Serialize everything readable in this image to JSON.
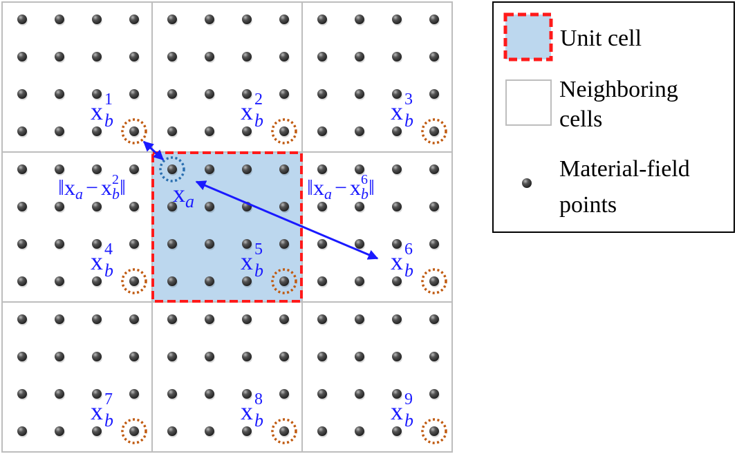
{
  "colors": {
    "unit_cell_fill": "#bcd7ee",
    "unit_cell_border": "#ff1a1a",
    "neighbor_border": "#bdbdbd",
    "label": "#1a1aff",
    "target_ring": "#c05a10",
    "source_ring": "#2a6fb0",
    "point": "#555555"
  },
  "grid": {
    "cells_per_side": 3,
    "points_per_cell_side": 4,
    "unit_cell_index": 5
  },
  "labels": {
    "xb": [
      {
        "base": "x",
        "sub": "b",
        "sup": "1"
      },
      {
        "base": "x",
        "sub": "b",
        "sup": "2"
      },
      {
        "base": "x",
        "sub": "b",
        "sup": "3"
      },
      {
        "base": "x",
        "sub": "b",
        "sup": "4"
      },
      {
        "base": "x",
        "sub": "b",
        "sup": "5"
      },
      {
        "base": "x",
        "sub": "b",
        "sup": "6"
      },
      {
        "base": "x",
        "sub": "b",
        "sup": "7"
      },
      {
        "base": "x",
        "sub": "b",
        "sup": "8"
      },
      {
        "base": "x",
        "sub": "b",
        "sup": "9"
      }
    ],
    "xa": {
      "base": "x",
      "sub": "a"
    },
    "norm_left": {
      "bar": "‖",
      "a": "x",
      "a_sub": "a",
      "minus": "−",
      "b": "x",
      "b_sub": "b",
      "b_sup": "2"
    },
    "norm_right": {
      "bar": "‖",
      "a": "x",
      "a_sub": "a",
      "minus": "−",
      "b": "x",
      "b_sub": "b",
      "b_sup": "6"
    }
  },
  "legend": {
    "unit_cell": "Unit cell",
    "neighboring_line1": "Neighboring",
    "neighboring_line2": "cells",
    "points_line1": "Material-field",
    "points_line2": "points"
  }
}
